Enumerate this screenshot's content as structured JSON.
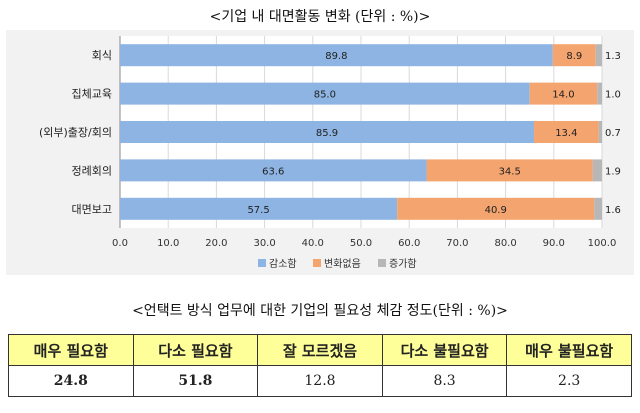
{
  "chart_title": "<기업 내 대면활동 변화 (단위 : %)>",
  "chart_data": {
    "type": "bar",
    "orientation": "horizontal",
    "stacked": true,
    "categories": [
      "회식",
      "집체교육",
      "(외부)출장/회의",
      "정례회의",
      "대면보고"
    ],
    "series": [
      {
        "name": "감소함",
        "color": "#8db4e2",
        "values": [
          89.8,
          85.0,
          85.9,
          63.6,
          57.5
        ]
      },
      {
        "name": "변화없음",
        "color": "#f4a46e",
        "values": [
          8.9,
          14.0,
          13.4,
          34.5,
          40.9
        ]
      },
      {
        "name": "증가함",
        "color": "#b7b7b7",
        "values": [
          1.3,
          1.0,
          0.7,
          1.9,
          1.6
        ]
      }
    ],
    "xlim": [
      0,
      100
    ],
    "xticks": [
      "0.0",
      "10.0",
      "20.0",
      "30.0",
      "40.0",
      "50.0",
      "60.0",
      "70.0",
      "80.0",
      "90.0",
      "100.0"
    ],
    "grid": true,
    "legend_position": "bottom"
  },
  "table_title": "<언택트 방식 업무에 대한 기업의 필요성 체감 정도(단위 : %)>",
  "survey_table": {
    "headers": [
      "매우 필요함",
      "다소 필요함",
      "잘 모르겠음",
      "다소 불필요함",
      "매우 불필요함"
    ],
    "values": [
      "24.8",
      "51.8",
      "12.8",
      "8.3",
      "2.3"
    ]
  }
}
